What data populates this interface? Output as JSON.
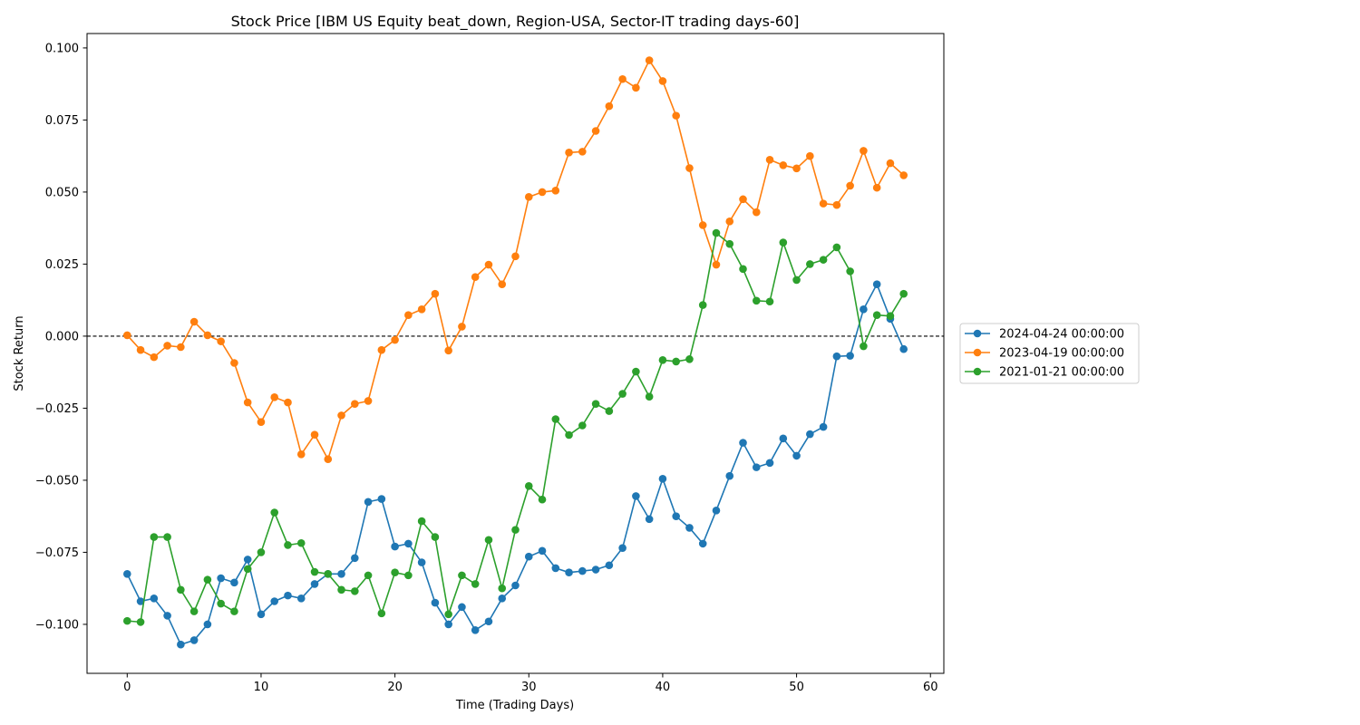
{
  "chart_data": {
    "type": "line",
    "title": "Stock Price [IBM US Equity beat_down, Region-USA, Sector-IT trading days-60]",
    "xlabel": "Time (Trading Days)",
    "ylabel": "Stock Return",
    "xlim": [
      -3,
      61
    ],
    "ylim": [
      -0.117,
      0.105
    ],
    "xticks": [
      0,
      10,
      20,
      30,
      40,
      50,
      60
    ],
    "xtick_labels": [
      "0",
      "10",
      "20",
      "30",
      "40",
      "50",
      "60"
    ],
    "yticks": [
      -0.1,
      -0.075,
      -0.05,
      -0.025,
      0.0,
      0.025,
      0.05,
      0.075,
      0.1
    ],
    "ytick_labels": [
      "−0.100",
      "−0.075",
      "−0.050",
      "−0.025",
      "0.000",
      "0.025",
      "0.050",
      "0.075",
      "0.100"
    ],
    "reference_line": {
      "y": 0,
      "style": "dashed",
      "color": "#000000"
    },
    "grid": false,
    "legend_position": "outside right",
    "series": [
      {
        "name": "2024-04-24 00:00:00",
        "color": "#1f77b4",
        "values": [
          -0.0825,
          -0.092,
          -0.091,
          -0.097,
          -0.107,
          -0.1055,
          -0.1,
          -0.084,
          -0.0855,
          -0.0775,
          -0.0965,
          -0.092,
          -0.09,
          -0.091,
          -0.086,
          -0.0825,
          -0.0825,
          -0.077,
          -0.0575,
          -0.0565,
          -0.073,
          -0.072,
          -0.0785,
          -0.0925,
          -0.1,
          -0.094,
          -0.102,
          -0.099,
          -0.091,
          -0.0865,
          -0.0765,
          -0.0745,
          -0.0805,
          -0.082,
          -0.0815,
          -0.081,
          -0.0795,
          -0.0735,
          -0.0555,
          -0.0635,
          -0.0495,
          -0.0625,
          -0.0665,
          -0.072,
          -0.0605,
          -0.0485,
          -0.037,
          -0.0455,
          -0.044,
          -0.0355,
          -0.0415,
          -0.034,
          -0.0315,
          -0.007,
          -0.0068,
          0.0093,
          0.018,
          0.006,
          -0.0045
        ]
      },
      {
        "name": "2023-04-19 00:00:00",
        "color": "#ff7f0e",
        "values": [
          0.0003,
          -0.0048,
          -0.0073,
          -0.0033,
          -0.0038,
          0.005,
          0.0003,
          -0.0018,
          -0.0093,
          -0.023,
          -0.0298,
          -0.0212,
          -0.023,
          -0.041,
          -0.0342,
          -0.0427,
          -0.0275,
          -0.0235,
          -0.0225,
          -0.0048,
          -0.0013,
          0.0073,
          0.0093,
          0.0147,
          -0.005,
          0.0033,
          0.0205,
          0.0248,
          0.018,
          0.0277,
          0.0483,
          0.05,
          0.0505,
          0.0637,
          0.064,
          0.0712,
          0.0798,
          0.0892,
          0.0862,
          0.0957,
          0.0885,
          0.0765,
          0.0583,
          0.0385,
          0.0248,
          0.0398,
          0.0475,
          0.043,
          0.0612,
          0.0593,
          0.0582,
          0.0625,
          0.046,
          0.0455,
          0.0522,
          0.0643,
          0.0515,
          0.06,
          0.0558
        ]
      },
      {
        "name": "2021-01-21 00:00:00",
        "color": "#2ca02c",
        "values": [
          -0.0988,
          -0.0992,
          -0.0697,
          -0.0697,
          -0.088,
          -0.0955,
          -0.0845,
          -0.0928,
          -0.0955,
          -0.0808,
          -0.075,
          -0.0612,
          -0.0725,
          -0.0718,
          -0.0818,
          -0.0825,
          -0.088,
          -0.0885,
          -0.083,
          -0.0962,
          -0.082,
          -0.083,
          -0.0642,
          -0.0697,
          -0.0965,
          -0.083,
          -0.086,
          -0.0707,
          -0.0875,
          -0.0672,
          -0.052,
          -0.0567,
          -0.0288,
          -0.0343,
          -0.031,
          -0.0235,
          -0.026,
          -0.02,
          -0.0123,
          -0.021,
          -0.0083,
          -0.0088,
          -0.008,
          0.0108,
          0.0358,
          0.032,
          0.0233,
          0.0123,
          0.012,
          0.0325,
          0.0195,
          0.025,
          0.0265,
          0.0308,
          0.0225,
          -0.0035,
          0.0073,
          0.007,
          0.0147
        ]
      }
    ]
  }
}
